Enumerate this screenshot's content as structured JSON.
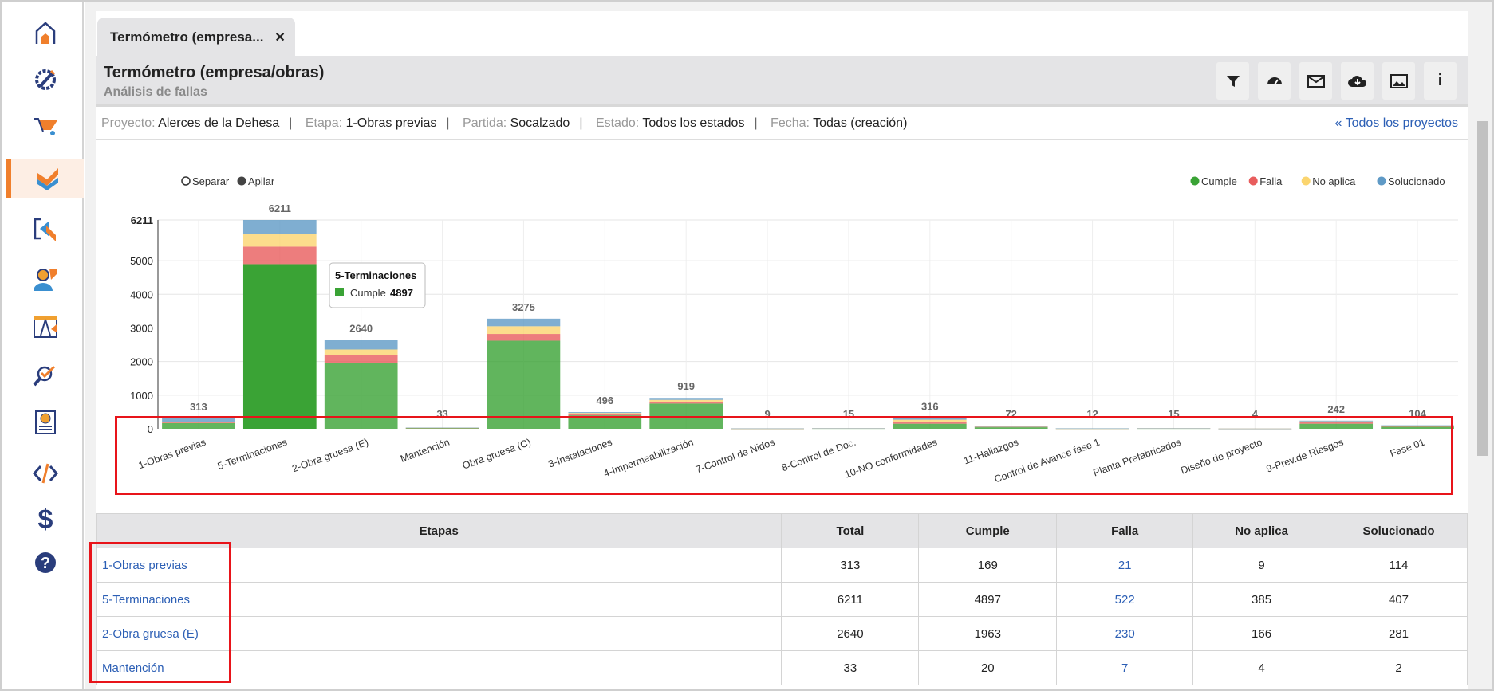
{
  "sidebar": {
    "items": [
      {
        "name": "home-icon"
      },
      {
        "name": "gear-pencil-icon"
      },
      {
        "name": "wheelbarrow-icon"
      },
      {
        "name": "checks-icon",
        "active": true
      },
      {
        "name": "transfer-icon"
      },
      {
        "name": "user-icon"
      },
      {
        "name": "blueprint-icon"
      },
      {
        "name": "inspect-icon"
      },
      {
        "name": "payment-icon"
      },
      {
        "name": "code-icon"
      },
      {
        "name": "dollar-icon"
      },
      {
        "name": "help-icon"
      }
    ]
  },
  "tab": {
    "label": "Termómetro (empresa...",
    "close": "✕"
  },
  "header": {
    "title": "Termómetro (empresa/obras)",
    "subtitle": "Análisis de fallas"
  },
  "filters": {
    "proyecto_label": "Proyecto:",
    "proyecto": "Alerces de la Dehesa",
    "etapa_label": "Etapa:",
    "etapa": "1-Obras previas",
    "partida_label": "Partida:",
    "partida": "Socalzado",
    "estado_label": "Estado:",
    "estado": "Todos los estados",
    "fecha_label": "Fecha:",
    "fecha": "Todas (creación)",
    "all_link": "« Todos los proyectos"
  },
  "chart_controls": {
    "separar": "Separar",
    "apilar": "Apilar"
  },
  "chart_data": {
    "type": "bar",
    "stacked": true,
    "categories": [
      "1-Obras previas",
      "5-Terminaciones",
      "2-Obra gruesa (E)",
      "Mantención",
      "Obra gruesa (C)",
      "3-Instalaciones",
      "4-Impermeabilización",
      "7-Control de Nidos",
      "8-Control de Doc.",
      "10-NO conformidades",
      "11-Hallazgos",
      "Control de Avance fase 1",
      "Planta Prefabricados",
      "Diseño de proyecto",
      "9-Prev.de Riesgos",
      "Fase 01"
    ],
    "totals": [
      313,
      6211,
      2640,
      33,
      3275,
      496,
      919,
      9,
      15,
      316,
      72,
      12,
      15,
      4,
      242,
      104
    ],
    "series": [
      {
        "name": "Cumple",
        "color": "#3aa335",
        "values": [
          169,
          4897,
          1963,
          20,
          2620,
          400,
          750,
          5,
          9,
          150,
          45,
          7,
          9,
          2,
          150,
          60
        ]
      },
      {
        "name": "Falla",
        "color": "#e85d5d",
        "values": [
          21,
          522,
          230,
          7,
          200,
          40,
          50,
          2,
          3,
          60,
          12,
          2,
          3,
          1,
          40,
          20
        ]
      },
      {
        "name": "No aplica",
        "color": "#fbd56f",
        "values": [
          9,
          385,
          166,
          4,
          230,
          30,
          60,
          1,
          2,
          60,
          8,
          2,
          2,
          1,
          30,
          14
        ]
      },
      {
        "name": "Solucionado",
        "color": "#5f9ac6",
        "values": [
          114,
          407,
          281,
          2,
          225,
          26,
          59,
          1,
          1,
          46,
          7,
          1,
          1,
          0,
          22,
          10
        ]
      }
    ],
    "yticks": [
      "0",
      "1000",
      "2000",
      "3000",
      "4000",
      "5000",
      "6211"
    ],
    "ylim": [
      0,
      6211
    ],
    "grid": true,
    "legend": "top-right",
    "tooltip": {
      "title": "5-Terminaciones",
      "series": "Cumple",
      "value": "4897"
    }
  },
  "table": {
    "headers": [
      "Etapas",
      "Total",
      "Cumple",
      "Falla",
      "No aplica",
      "Solucionado"
    ],
    "rows": [
      [
        "1-Obras previas",
        "313",
        "169",
        "21",
        "9",
        "114"
      ],
      [
        "5-Terminaciones",
        "6211",
        "4897",
        "522",
        "385",
        "407"
      ],
      [
        "2-Obra gruesa (E)",
        "2640",
        "1963",
        "230",
        "166",
        "281"
      ],
      [
        "Mantención",
        "33",
        "20",
        "7",
        "4",
        "2"
      ]
    ]
  }
}
